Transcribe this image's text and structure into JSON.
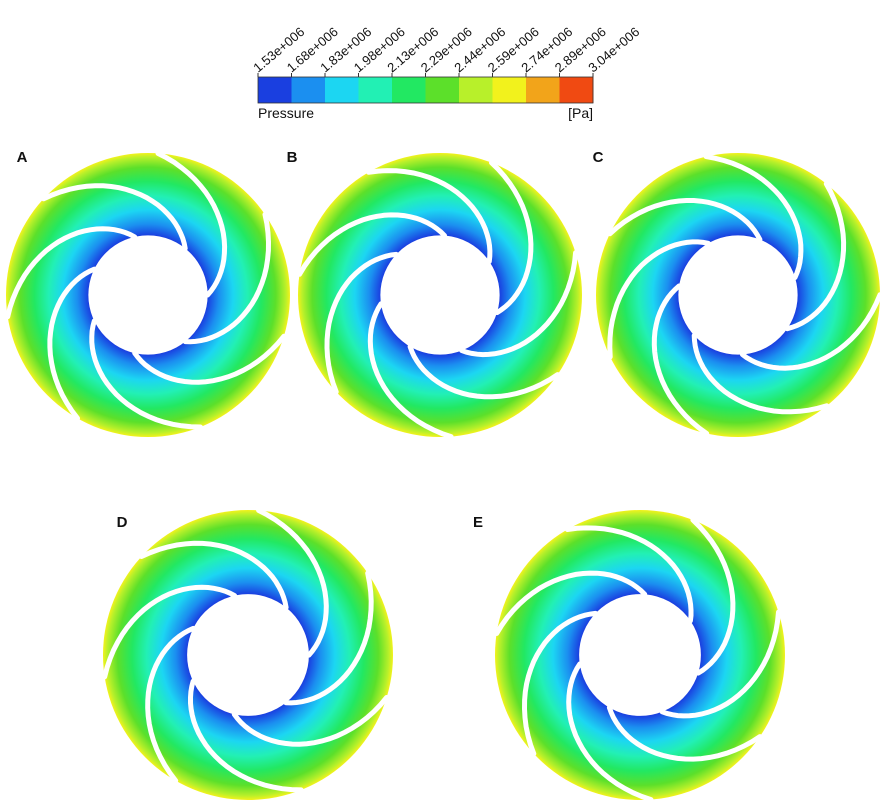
{
  "legend": {
    "ticks": [
      "1.53e+006",
      "1.68e+006",
      "1.83e+006",
      "1.98e+006",
      "2.13e+006",
      "2.29e+006",
      "2.44e+006",
      "2.59e+006",
      "2.74e+006",
      "2.89e+006",
      "3.04e+006"
    ],
    "colors": [
      "#1a3fe0",
      "#1b8ff0",
      "#1cd6f2",
      "#22f0b4",
      "#22e862",
      "#5ce02a",
      "#b8f02a",
      "#f2f21c",
      "#f2a41a",
      "#f04a12"
    ],
    "title": "Pressure",
    "unit": "[Pa]"
  },
  "panels": [
    {
      "label": "A"
    },
    {
      "label": "B"
    },
    {
      "label": "C"
    },
    {
      "label": "D"
    },
    {
      "label": "E"
    }
  ]
}
